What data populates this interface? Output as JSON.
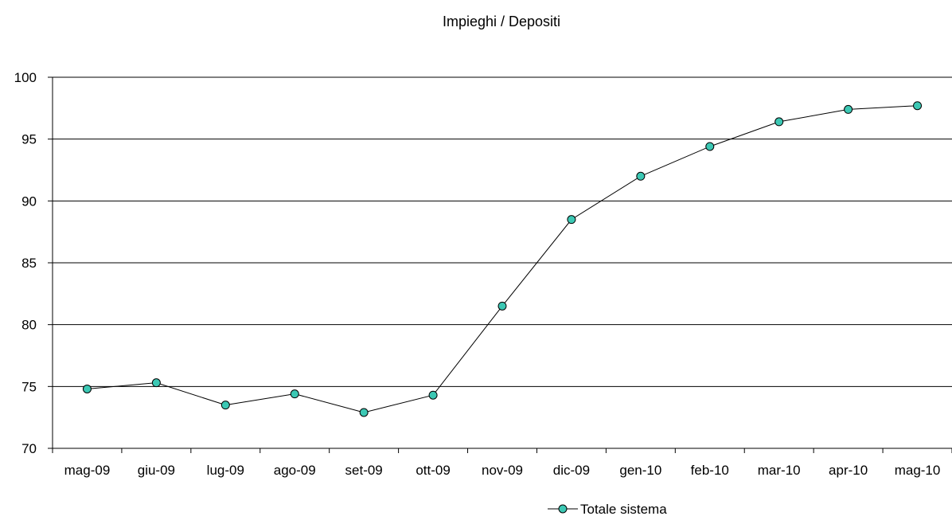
{
  "chart_data": {
    "type": "line",
    "title": "Impieghi / Depositi",
    "xlabel": "",
    "ylabel": "",
    "categories": [
      "mag-09",
      "giu-09",
      "lug-09",
      "ago-09",
      "set-09",
      "ott-09",
      "nov-09",
      "dic-09",
      "gen-10",
      "feb-10",
      "mar-10",
      "apr-10",
      "mag-10"
    ],
    "series": [
      {
        "name": "Totale sistema",
        "values": [
          74.8,
          75.3,
          73.5,
          74.4,
          72.9,
          74.3,
          81.5,
          88.5,
          92.0,
          94.4,
          96.4,
          97.4,
          97.7
        ]
      }
    ],
    "ylim": [
      70,
      100
    ],
    "yticks": [
      "70",
      "75",
      "80",
      "85",
      "90",
      "95",
      "100"
    ],
    "grid": "horizontal",
    "legend": "bottom-center",
    "colors": {
      "marker_fill": "#3cc8b4",
      "line": "#000000",
      "gridline": "#000000"
    }
  }
}
